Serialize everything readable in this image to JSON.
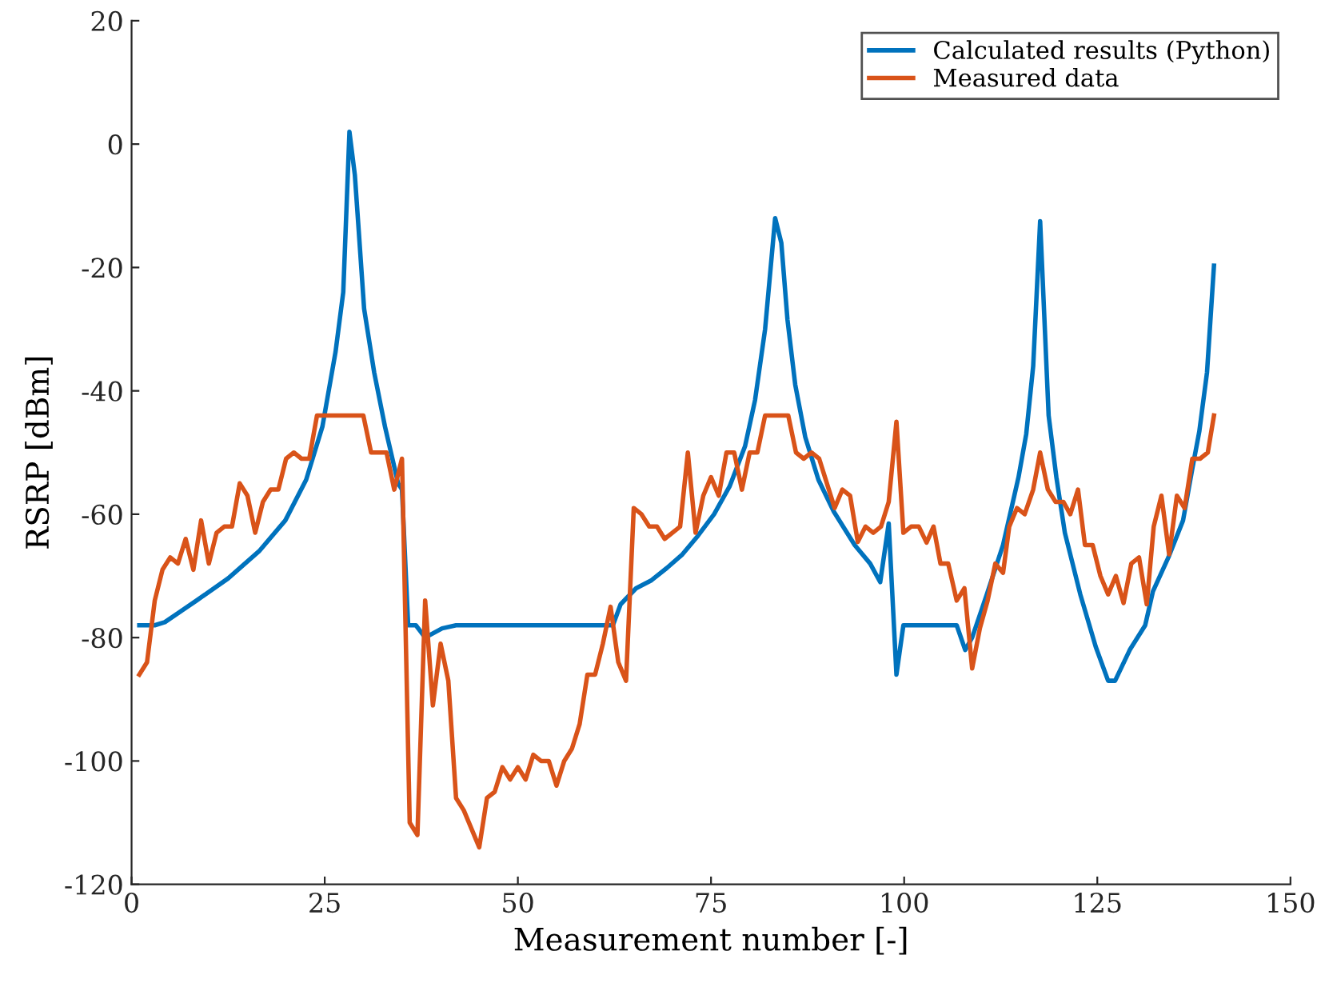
{
  "chart_data": {
    "type": "line",
    "xlabel": "Measurement number [-]",
    "ylabel": "RSRP [dBm]",
    "xlim": [
      0,
      150
    ],
    "xticks": [
      0,
      25,
      50,
      75,
      100,
      125,
      150
    ],
    "ylim": [
      -120,
      20
    ],
    "yticks": [
      -120,
      -100,
      -80,
      -60,
      -40,
      -20,
      0,
      20
    ],
    "grid": false,
    "legend": "top right",
    "marker": "none",
    "line_style": "solid",
    "series": [
      {
        "name": "Calculated results (Python)",
        "color": "#0072bd",
        "x": [
          1,
          3,
          4.3,
          8.4,
          12.5,
          16.5,
          19.9,
          22.6,
          24.7,
          26.4,
          27.4,
          28.2,
          28.9,
          29.4,
          30.1,
          31.4,
          32.8,
          34.5,
          35,
          35.8,
          36.8,
          38,
          40.2,
          42,
          62.3,
          63.3,
          65.3,
          67.3,
          69.3,
          71.3,
          73.3,
          75.4,
          77.4,
          79.4,
          80.7,
          82,
          83.3,
          84.1,
          84.9,
          85.9,
          87.2,
          88.9,
          90.9,
          93.6,
          95.6,
          96.9,
          98,
          99,
          99.9,
          106.8,
          107.9,
          108.8,
          110.7,
          112.8,
          114.8,
          115.8,
          116.7,
          117.6,
          118.7,
          119.7,
          120.8,
          122.8,
          124.8,
          126.4,
          127.3,
          129.2,
          131.2,
          132.2,
          134.2,
          136.1,
          137.3,
          138.2,
          139.2,
          140.1
        ],
        "values": [
          -78,
          -78,
          -77.5,
          -74,
          -70.4,
          -66,
          -61,
          -54.4,
          -45.8,
          -33.7,
          -24,
          2,
          -5,
          -14,
          -26.7,
          -37,
          -45.8,
          -55,
          -56,
          -78,
          -78,
          -80,
          -78.5,
          -78,
          -78,
          -74.6,
          -72,
          -70.7,
          -68.7,
          -66.5,
          -63.5,
          -60,
          -55.5,
          -49,
          -41.5,
          -30,
          -12,
          -16,
          -28.5,
          -39,
          -47.5,
          -54.4,
          -59.6,
          -65,
          -68,
          -71,
          -61.5,
          -86,
          -78,
          -78,
          -82,
          -80,
          -73,
          -65,
          -54,
          -47,
          -36,
          -12.5,
          -44,
          -54,
          -63,
          -73,
          -81.5,
          -87,
          -87,
          -82,
          -78,
          -72.5,
          -67,
          -61,
          -52.6,
          -46.6,
          -37,
          -19.7
        ]
      },
      {
        "name": "Measured data",
        "color": "#d95319",
        "x": [
          1,
          2,
          3,
          4,
          5,
          6,
          7,
          8,
          9,
          10,
          11,
          12,
          13,
          14,
          15,
          16,
          17,
          18,
          19,
          20,
          21,
          22,
          23,
          24,
          30,
          31,
          33,
          34,
          35,
          36,
          37,
          38,
          39,
          40,
          41,
          42,
          43,
          45,
          46,
          47,
          48,
          49,
          50,
          51,
          52,
          53,
          54,
          55,
          56,
          57,
          58,
          59,
          60,
          61,
          62,
          63,
          64,
          65,
          66,
          67,
          68,
          69,
          70,
          71,
          72,
          73,
          74,
          75,
          76,
          77,
          78,
          79,
          80,
          81,
          82,
          83,
          84,
          85,
          86,
          87,
          88,
          89,
          90,
          91,
          92,
          93,
          94,
          95,
          96,
          97,
          98,
          99,
          99.9,
          100.9,
          101.9,
          102.9,
          103.8,
          104.7,
          105.7,
          106.8,
          107.8,
          108.8,
          109.8,
          110.8,
          111.8,
          112.8,
          113.6,
          114.6,
          115.6,
          116.7,
          117.6,
          118.6,
          119.6,
          120.6,
          121.5,
          122.5,
          123.4,
          124.4,
          125.4,
          126.4,
          127.4,
          128.4,
          129.4,
          130.4,
          131.4,
          132.3,
          133.3,
          134.3,
          135.3,
          136.3,
          137.3,
          138.3,
          139.3,
          140.1
        ],
        "values": [
          -86,
          -84,
          -74,
          -69,
          -67,
          -68,
          -64,
          -69,
          -61,
          -68,
          -63,
          -62,
          -62,
          -55,
          -57,
          -63,
          -58,
          -56,
          -56,
          -51,
          -50,
          -51,
          -51,
          -44,
          -44,
          -50,
          -50,
          -56,
          -51,
          -110,
          -112,
          -74,
          -91,
          -81,
          -87,
          -106,
          -108,
          -114,
          -106,
          -105,
          -101,
          -103,
          -101,
          -103,
          -99,
          -100,
          -100,
          -104,
          -100,
          -98,
          -94,
          -86,
          -86,
          -81,
          -75,
          -84,
          -87,
          -59,
          -60,
          -62,
          -62,
          -64,
          -63,
          -62,
          -50,
          -63,
          -57,
          -54,
          -57,
          -50,
          -50,
          -56,
          -50,
          -50,
          -44,
          -44,
          -44,
          -44,
          -50,
          -51,
          -50,
          -51,
          -55,
          -59,
          -56,
          -57,
          -64.5,
          -62,
          -63,
          -62,
          -58,
          -45,
          -63,
          -62,
          -62,
          -64.6,
          -62,
          -68,
          -68,
          -74,
          -72,
          -85,
          -78.5,
          -74,
          -68,
          -69.5,
          -62,
          -59,
          -60,
          -56,
          -50,
          -56,
          -58,
          -58,
          -60,
          -56,
          -65,
          -65,
          -70,
          -73,
          -70,
          -74.4,
          -68,
          -67,
          -74.6,
          -62,
          -57,
          -66.5,
          -57,
          -59,
          -51,
          -51,
          -50,
          -44
        ]
      }
    ]
  }
}
